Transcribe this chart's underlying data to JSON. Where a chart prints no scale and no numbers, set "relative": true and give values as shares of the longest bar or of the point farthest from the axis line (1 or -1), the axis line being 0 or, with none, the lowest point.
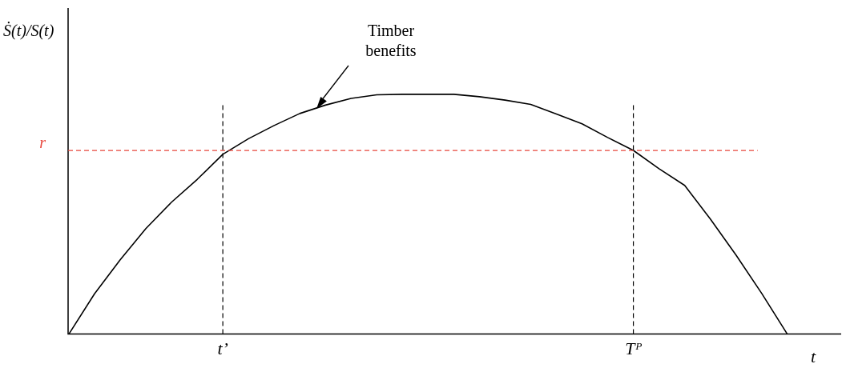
{
  "chart_data": {
    "type": "line",
    "relative": true,
    "ylabel": "Ṡ(t)/S(t)",
    "xlabel": "t",
    "categories": [
      null,
      null,
      null,
      null,
      null,
      null,
      "t’",
      null,
      null,
      null,
      null,
      null,
      null,
      null,
      null,
      null,
      null,
      null,
      null,
      null,
      null,
      null,
      "Tᴾ",
      null,
      null,
      null,
      null,
      null,
      null
    ],
    "series": [
      {
        "color": "#000000",
        "values": [
          0,
          0.168,
          0.31,
          0.44,
          0.55,
          0.645,
          0.75,
          0.815,
          0.87,
          0.92,
          0.955,
          0.983,
          0.998,
          1,
          1,
          1,
          0.99,
          0.976,
          0.958,
          0.918,
          0.877,
          0.82,
          0.766,
          0.69,
          0.62,
          0.48,
          0.33,
          0.17,
          0
        ]
      }
    ],
    "marker": "none",
    "line_style": "solid",
    "ref_lines": [
      {
        "axis": "y",
        "value": 0.766,
        "label": "r",
        "color": "#e8463c",
        "line_style": "dashed"
      },
      {
        "axis": "x",
        "value": "t’",
        "color": "#000000",
        "line_style": "dashed"
      },
      {
        "axis": "x",
        "value": "Tᴾ",
        "color": "#000000",
        "line_style": "dashed"
      }
    ],
    "annotations": [
      "Timber benefits"
    ]
  }
}
